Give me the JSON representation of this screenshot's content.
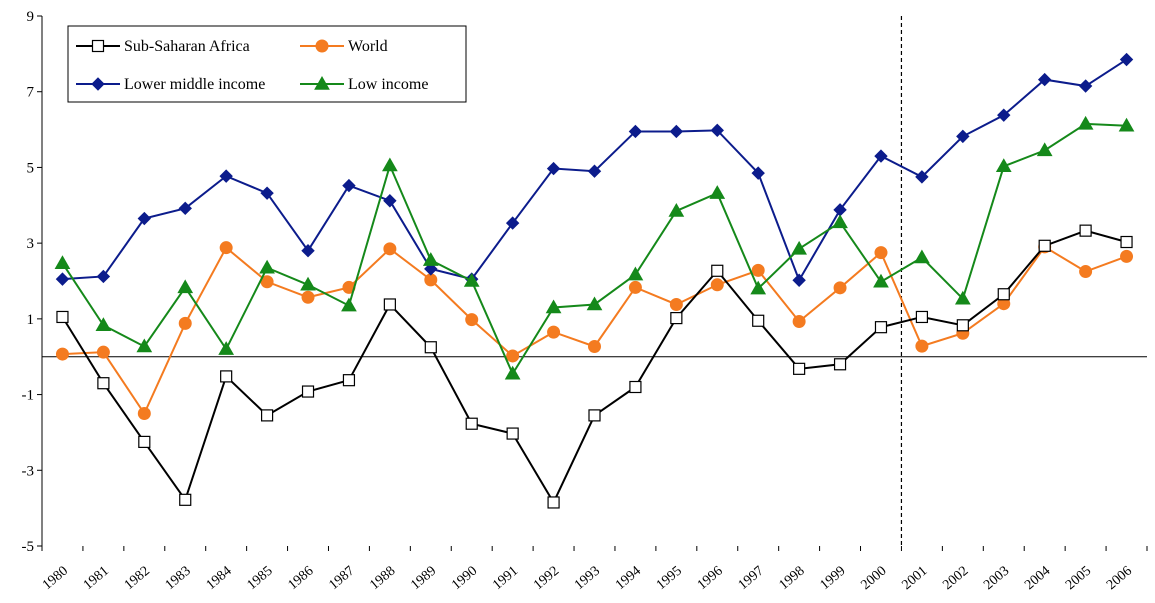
{
  "chart_data": {
    "type": "line",
    "title": "",
    "xlabel": "",
    "ylabel": "",
    "ylim": [
      -5,
      9
    ],
    "yticks": [
      -5,
      -3,
      -1,
      1,
      3,
      5,
      7,
      9
    ],
    "x": [
      "1980",
      "1981",
      "1982",
      "1983",
      "1984",
      "1985",
      "1986",
      "1987",
      "1988",
      "1989",
      "1990",
      "1991",
      "1992",
      "1993",
      "1994",
      "1995",
      "1996",
      "1997",
      "1998",
      "1999",
      "2000",
      "2001",
      "2002",
      "2003",
      "2004",
      "2005",
      "2006"
    ],
    "reference_line": {
      "x_between": [
        "2000",
        "2001"
      ],
      "style": "dashed"
    },
    "legend_position": "top-left",
    "grid": false,
    "series": [
      {
        "name": "Sub-Saharan Africa",
        "color": "#000000",
        "marker": "square-open",
        "values": [
          1.05,
          -0.7,
          -2.25,
          -3.78,
          -0.52,
          -1.55,
          -0.92,
          -0.62,
          1.38,
          0.25,
          -1.77,
          -2.03,
          -3.85,
          -1.55,
          -0.8,
          1.02,
          2.27,
          0.95,
          -0.32,
          -0.2,
          0.78,
          1.05,
          0.83,
          1.65,
          2.93,
          3.33,
          3.03
        ]
      },
      {
        "name": "World",
        "color": "#f47b20",
        "marker": "circle",
        "values": [
          0.07,
          0.12,
          -1.5,
          0.88,
          2.88,
          1.98,
          1.57,
          1.83,
          2.85,
          2.03,
          0.98,
          0.02,
          0.65,
          0.27,
          1.83,
          1.38,
          1.9,
          2.28,
          0.93,
          1.82,
          2.75,
          0.28,
          0.62,
          1.4,
          2.9,
          2.25,
          2.65
        ]
      },
      {
        "name": "Lower middle income",
        "color": "#0c1c8c",
        "marker": "diamond",
        "values": [
          2.05,
          2.12,
          3.65,
          3.92,
          4.77,
          4.32,
          2.8,
          4.52,
          4.12,
          2.32,
          2.05,
          3.53,
          4.97,
          4.9,
          5.95,
          5.95,
          5.98,
          4.85,
          2.02,
          3.88,
          5.3,
          4.75,
          5.82,
          6.38,
          7.32,
          7.15,
          7.85
        ]
      },
      {
        "name": "Low income",
        "color": "#15891a",
        "marker": "triangle",
        "values": [
          2.47,
          0.83,
          0.27,
          1.83,
          0.2,
          2.35,
          1.9,
          1.35,
          5.05,
          2.55,
          2.0,
          -0.45,
          1.3,
          1.38,
          2.17,
          3.85,
          4.32,
          1.8,
          2.85,
          3.55,
          1.98,
          2.62,
          1.53,
          5.03,
          5.45,
          6.15,
          6.1
        ]
      }
    ]
  }
}
